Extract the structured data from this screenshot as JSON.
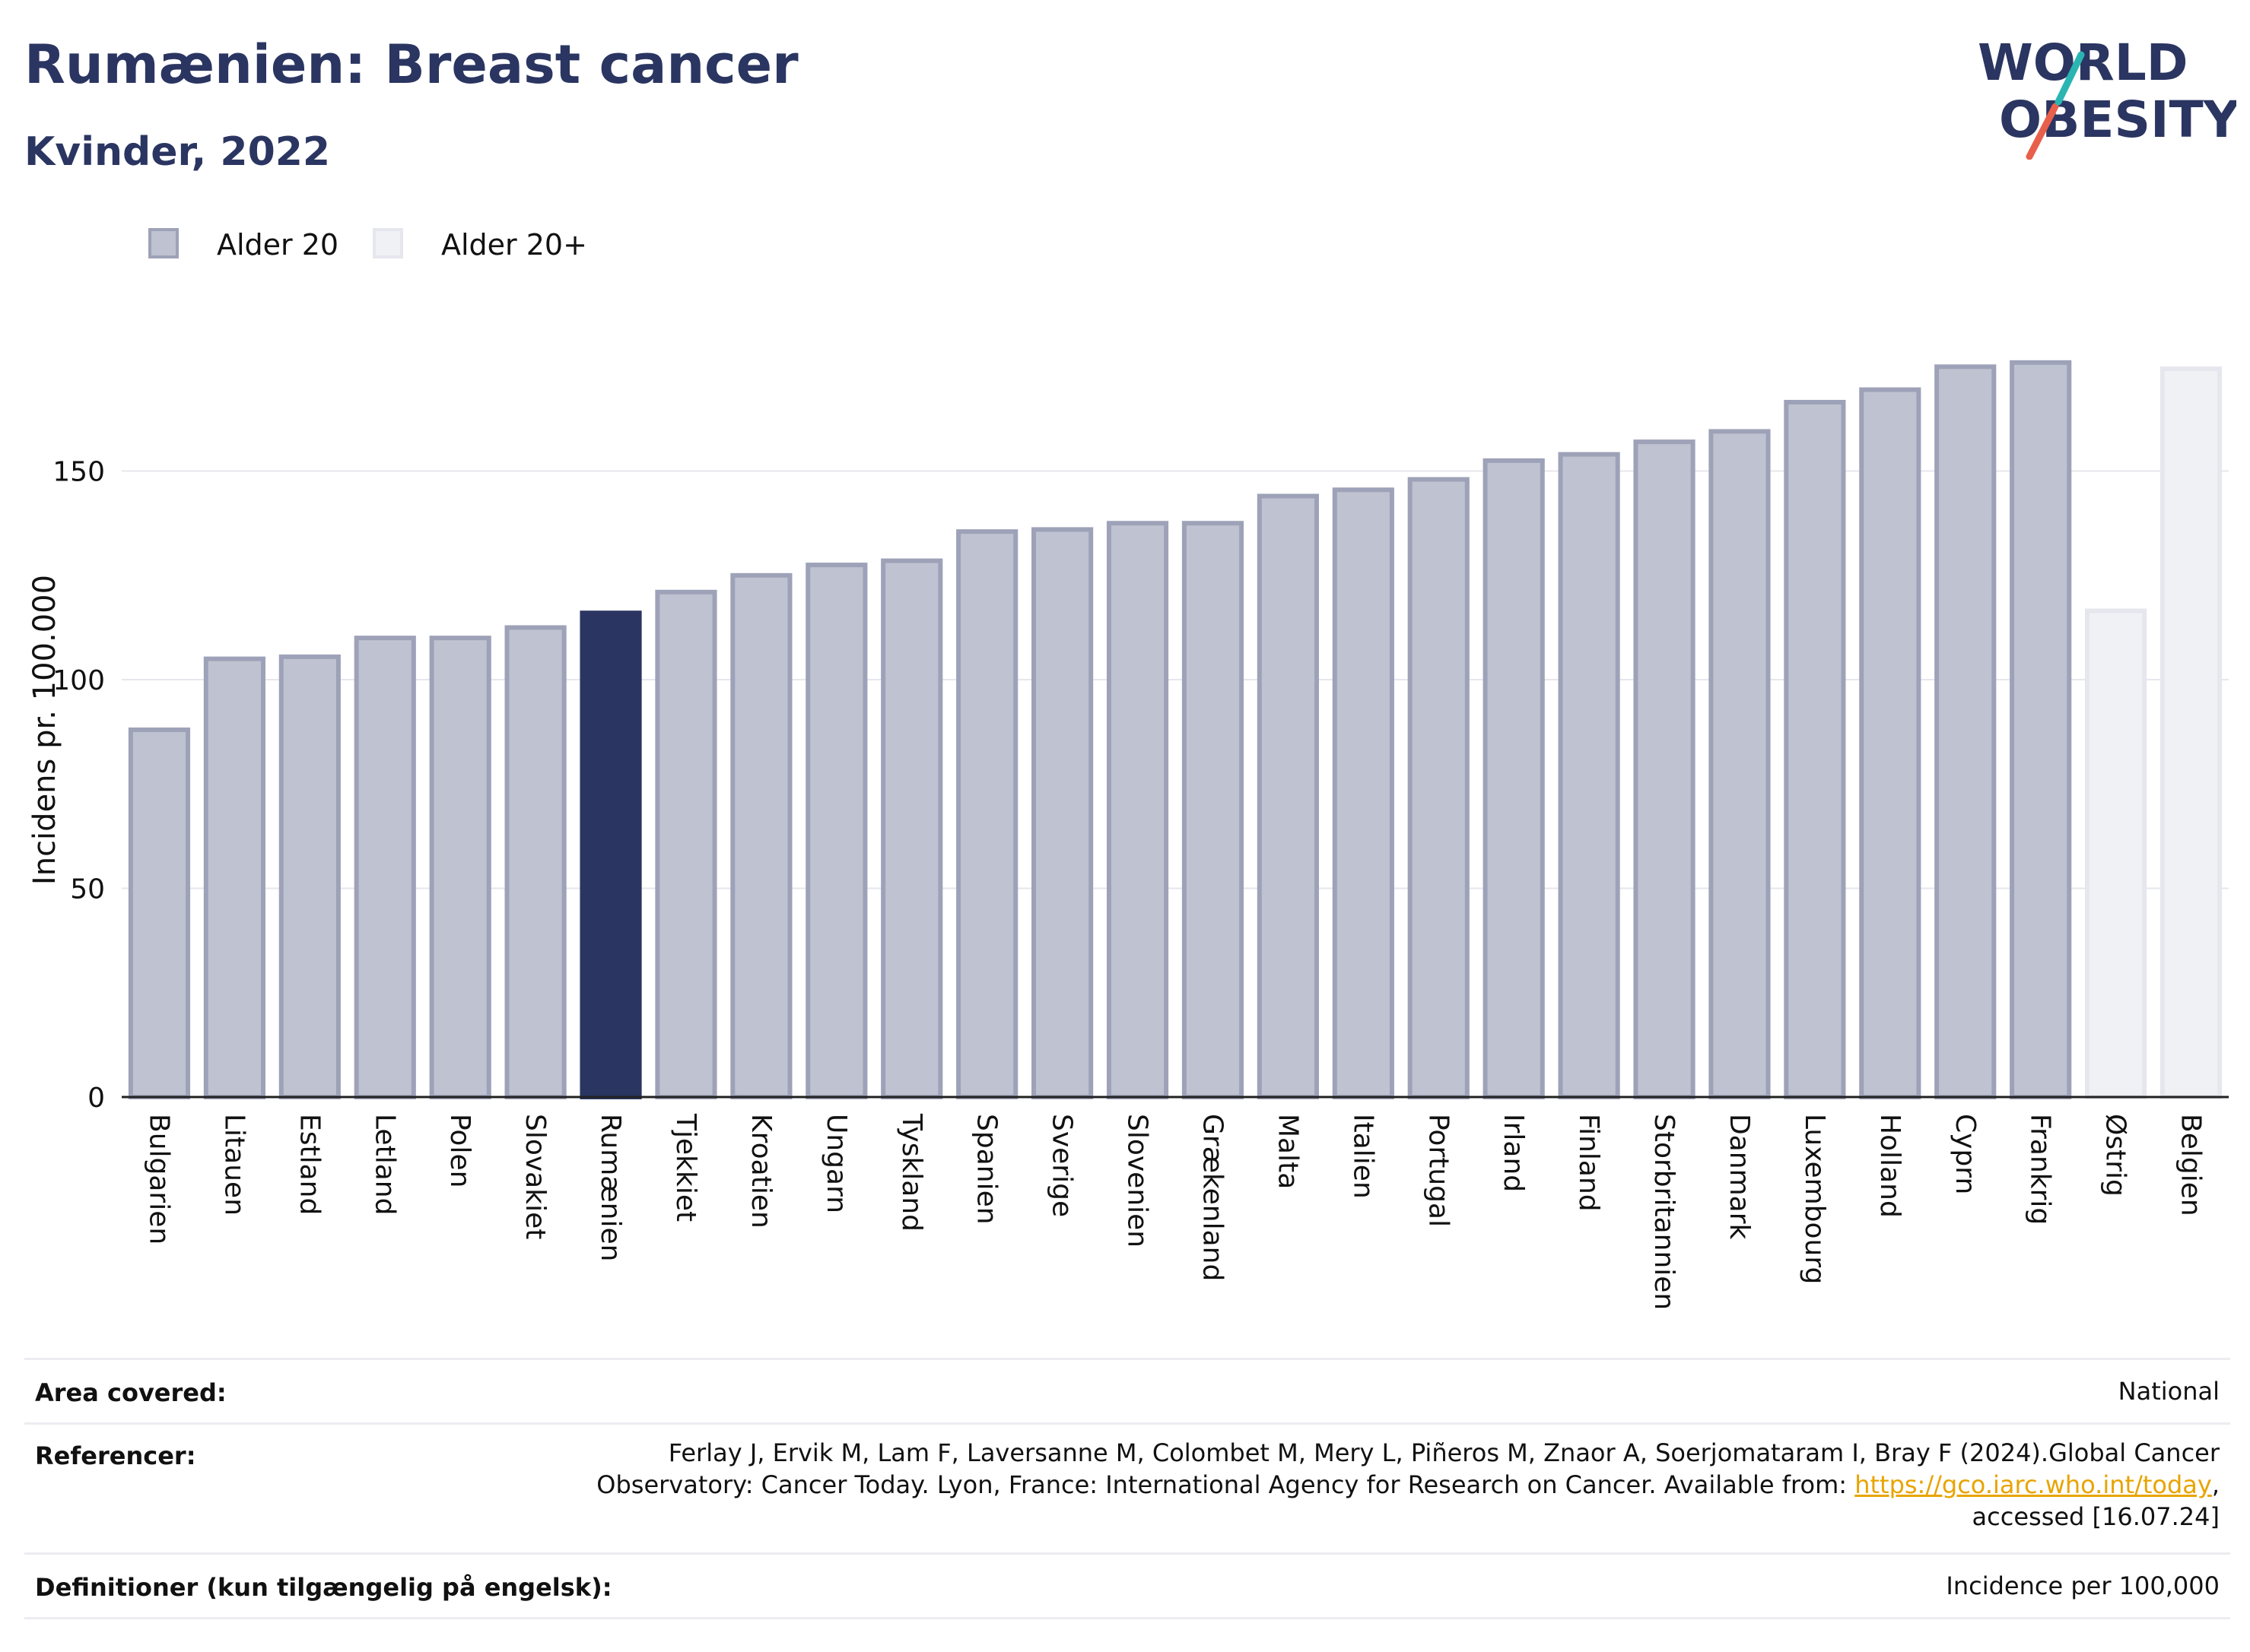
{
  "header": {
    "title": "Rumænien: Breast cancer",
    "subtitle": "Kvinder, 2022",
    "logo_line1": "WORLD",
    "logo_line2": "OBESITY"
  },
  "legend": [
    {
      "label": "Alder 20",
      "color": "#2b3561"
    },
    {
      "label": "Alder 20+",
      "color": "#c9cbd6"
    }
  ],
  "chart_data": {
    "type": "bar",
    "ylabel": "Incidens pr. 100.000",
    "ylim": [
      0,
      190
    ],
    "yticks": [
      0,
      50,
      100,
      150
    ],
    "grid": true,
    "highlight_color": "#2b3561",
    "categories": [
      "Bulgarien",
      "Litauen",
      "Estland",
      "Letland",
      "Polen",
      "Slovakiet",
      "Rumænien",
      "Tjekkiet",
      "Kroatien",
      "Ungarn",
      "Tyskland",
      "Spanien",
      "Sverige",
      "Slovenien",
      "Grækenland",
      "Malta",
      "Italien",
      "Portugal",
      "Irland",
      "Finland",
      "Storbritannien",
      "Danmark",
      "Luxembourg",
      "Holland",
      "Cyprn",
      "Frankrig",
      "Østrig",
      "Belgien"
    ],
    "series": [
      {
        "name": "Alder 20",
        "values": [
          88.0,
          105.0,
          105.5,
          110.0,
          110.0,
          112.5,
          116.0,
          121.0,
          125.0,
          127.5,
          128.5,
          135.5,
          136.0,
          137.5,
          137.5,
          144.0,
          145.5,
          148.0,
          152.5,
          154.0,
          157.0,
          159.5,
          166.5,
          169.5,
          175.0,
          176.0,
          null,
          null
        ]
      },
      {
        "name": "Alder 20+",
        "values": [
          null,
          null,
          null,
          null,
          null,
          null,
          null,
          null,
          null,
          null,
          null,
          null,
          null,
          null,
          null,
          null,
          null,
          null,
          null,
          null,
          null,
          null,
          null,
          null,
          null,
          null,
          116.5,
          174.5
        ]
      }
    ]
  },
  "footer": {
    "area_label": "Area covered:",
    "area_value": "National",
    "ref_label": "Referencer:",
    "ref_text1": "Ferlay J, Ervik M, Lam F, Laversanne M, Colombet M, Mery L, Piñeros M, Znaor A, Soerjomataram I, Bray F (2024).Global Cancer",
    "ref_text2": "Observatory: Cancer Today. Lyon, France: International Agency for Research on Cancer. Available from: ",
    "ref_link": "https://gco.iarc.who.int/today",
    "ref_text3": ",",
    "ref_text4": "accessed [16.07.24]",
    "def_label": "Definitioner (kun tilgængelig på engelsk):",
    "def_value": "Incidence per 100,000"
  }
}
